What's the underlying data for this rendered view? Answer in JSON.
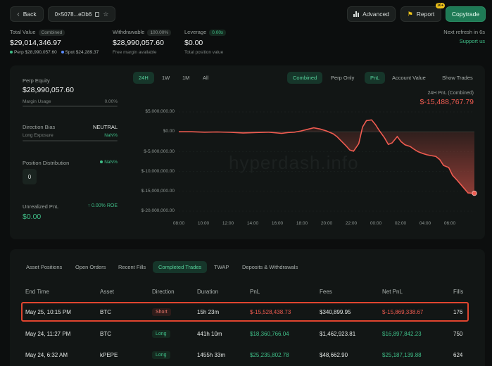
{
  "nav": {
    "back_label": "Back",
    "address": "0×5078...eDb6"
  },
  "header_actions": {
    "advanced_label": "Advanced",
    "report_label": "Report",
    "report_badge": "10+",
    "copytrade_label": "Copytrade"
  },
  "refresh": {
    "text": "Next refresh in 6s",
    "support_link": "Support us"
  },
  "summary": {
    "total_value": {
      "label": "Total Value",
      "badge": "Combined",
      "value": "$29,014,346.97",
      "perp_label": "Perp",
      "perp_value": "$28,990,057.60",
      "spot_label": "Spot",
      "spot_value": "$24,289.37"
    },
    "withdrawable": {
      "label": "Withdrawable",
      "badge": "100.00%",
      "value": "$28,990,057.60",
      "sub": "Free margin available"
    },
    "leverage": {
      "label": "Leverage",
      "badge": "0.00x",
      "value": "$0.00",
      "sub": "Total position value"
    }
  },
  "left_panel": {
    "perp_equity_label": "Perp Equity",
    "perp_equity_value": "$28,990,057.60",
    "margin_usage_label": "Margin Usage",
    "margin_usage_value": "0.00%",
    "direction_bias_label": "Direction Bias",
    "direction_bias_value": "NEUTRAL",
    "long_exposure_label": "Long Exposure",
    "long_exposure_value": "NaN%",
    "position_distribution_label": "Position Distribution",
    "position_distribution_value": "NaN%",
    "position_count": "0",
    "unrealized_pnl_label": "Unrealized PnL",
    "unrealized_pnl_roe": "↑ 0.00% ROE",
    "unrealized_pnl_value": "$0.00"
  },
  "chart_controls": {
    "ranges": [
      "24H",
      "1W",
      "1M",
      "All"
    ],
    "active_range": "24H",
    "scopes": [
      "Combined",
      "Perp Only"
    ],
    "metrics": [
      "PnL",
      "Account Value"
    ],
    "show_trades": "Show Trades"
  },
  "chart_header": {
    "title": "24H PnL (Combined)",
    "value": "$-15,488,767.79"
  },
  "watermark": "hyperdash.info",
  "chart_data": {
    "type": "area",
    "x_ticks": [
      "08:00",
      "10:00",
      "12:00",
      "14:00",
      "16:00",
      "18:00",
      "20:00",
      "22:00",
      "00:00",
      "02:00",
      "04:00",
      "06:00"
    ],
    "y_ticks": [
      "$5,000,000.00",
      "$0.00",
      "$-5,000,000.00",
      "$-10,000,000.00",
      "$-15,000,000.00",
      "$-20,000,000.00"
    ],
    "ylim": [
      -20000000,
      5000000
    ],
    "x_hours": [
      0,
      1,
      2,
      3,
      4,
      5,
      6,
      7,
      8,
      8.5,
      9,
      9.5,
      10,
      10.5,
      11,
      11.5,
      12,
      12.3,
      12.6,
      13,
      13.3,
      13.6,
      14,
      14.3,
      14.6,
      15,
      15.3,
      15.6,
      16,
      16.3,
      16.6,
      17,
      17.3,
      17.6,
      18,
      18.3,
      18.6,
      19,
      19.3,
      19.6,
      20,
      20.3,
      20.6,
      21,
      21.3,
      21.6,
      22,
      22.5,
      22.8,
      23
    ],
    "y_values": [
      0,
      0,
      -100000,
      -50000,
      -150000,
      -300000,
      -200000,
      -100000,
      -400000,
      -200000,
      -100000,
      200000,
      600000,
      1000000,
      700000,
      200000,
      -500000,
      -1200000,
      -2200000,
      -3500000,
      -4600000,
      -4900000,
      -3000000,
      1200000,
      2800000,
      3000000,
      1800000,
      300000,
      -1500000,
      -3200000,
      -2800000,
      -1200000,
      -2500000,
      -3300000,
      -3700000,
      -4400000,
      -5000000,
      -5500000,
      -5800000,
      -6000000,
      -6200000,
      -7000000,
      -8500000,
      -9000000,
      -11000000,
      -12000000,
      -13500000,
      -15400000,
      -15489000,
      -15488767
    ],
    "color": "#ef5b50"
  },
  "trade_tabs": [
    "Asset Positions",
    "Open Orders",
    "Recent Fills",
    "Completed Trades",
    "TWAP",
    "Deposits & Withdrawals"
  ],
  "active_trade_tab": "Completed Trades",
  "table": {
    "headers": [
      "End Time",
      "Asset",
      "Direction",
      "Duration",
      "PnL",
      "Fees",
      "Net PnL",
      "Fills"
    ],
    "rows": [
      {
        "end_time": "May 25, 10:15 PM",
        "asset": "BTC",
        "direction": "Short",
        "duration": "15h 23m",
        "pnl": "$-15,528,438.73",
        "fees": "$340,899.95",
        "net_pnl": "$-15,869,338.67",
        "fills": "176",
        "positive": false
      },
      {
        "end_time": "May 24, 11:27 PM",
        "asset": "BTC",
        "direction": "Long",
        "duration": "441h 10m",
        "pnl": "$18,360,766.04",
        "fees": "$1,462,923.81",
        "net_pnl": "$16,897,842.23",
        "fills": "750",
        "positive": true
      },
      {
        "end_time": "May 24, 6:32 AM",
        "asset": "kPEPE",
        "direction": "Long",
        "duration": "1455h 33m",
        "pnl": "$25,235,802.78",
        "fees": "$48,662.90",
        "net_pnl": "$25,187,139.88",
        "fills": "624",
        "positive": true
      }
    ]
  }
}
